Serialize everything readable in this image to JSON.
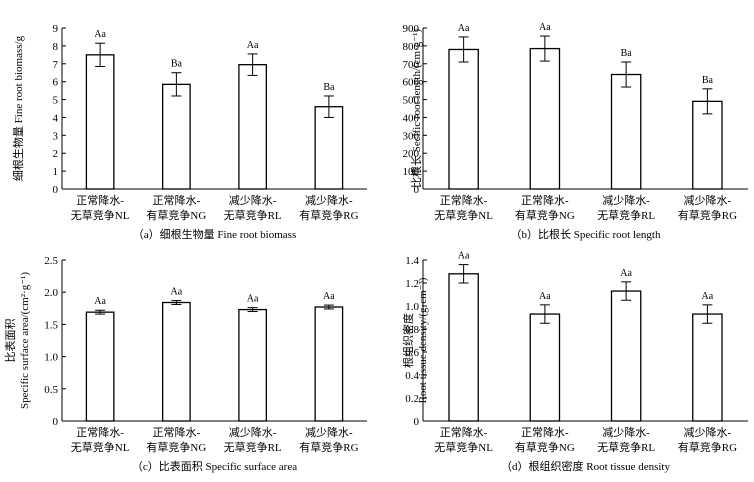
{
  "chart_data": [
    {
      "type": "bar",
      "caption": "（a）细根生物量 Fine root biomass",
      "ylabel": "细根生物量 Fine root biomass/g",
      "categories": [
        [
          "正常降水-",
          "无草竞争NL"
        ],
        [
          "正常降水-",
          "有草竞争NG"
        ],
        [
          "减少降水-",
          "无草竞争RL"
        ],
        [
          "减少降水-",
          "有草竞争RG"
        ]
      ],
      "values": [
        7.5,
        5.85,
        6.95,
        4.6
      ],
      "errors": [
        0.65,
        0.65,
        0.6,
        0.6
      ],
      "labels": [
        "Aa",
        "Ba",
        "Aa",
        "Ba"
      ],
      "ylim": [
        0,
        9
      ],
      "yticks": [
        0,
        1,
        2,
        3,
        4,
        5,
        6,
        7,
        8,
        9
      ],
      "yticklabels": [
        "0",
        "1",
        "2",
        "3",
        "4",
        "5",
        "6",
        "7",
        "8",
        "9"
      ]
    },
    {
      "type": "bar",
      "caption": "（b）比根长 Specific root length",
      "ylabel": "比根长 Secific root length/(cm·g⁻¹)",
      "categories": [
        [
          "正常降水-",
          "无草竞争NL"
        ],
        [
          "正常降水-",
          "有草竞争NG"
        ],
        [
          "减少降水-",
          "无草竞争RL"
        ],
        [
          "减少降水-",
          "有草竞争RG"
        ]
      ],
      "values": [
        780,
        785,
        640,
        490
      ],
      "errors": [
        70,
        70,
        70,
        70
      ],
      "labels": [
        "Aa",
        "Aa",
        "Ba",
        "Ba"
      ],
      "ylim": [
        0,
        900
      ],
      "yticks": [
        0,
        100,
        200,
        300,
        400,
        500,
        600,
        700,
        800,
        900
      ],
      "yticklabels": [
        "0",
        "100",
        "200",
        "300",
        "400",
        "500",
        "600",
        "700",
        "800",
        "900"
      ]
    },
    {
      "type": "bar",
      "caption": "（c）比表面积 Specific surface area",
      "ylabel": [
        "比表面积",
        "Specific surface area/(cm²·g⁻¹)"
      ],
      "categories": [
        [
          "正常降水-",
          "无草竞争NL"
        ],
        [
          "正常降水-",
          "有草竞争NG"
        ],
        [
          "减少降水-",
          "无草竞争RL"
        ],
        [
          "减少降水-",
          "有草竞争RG"
        ]
      ],
      "values": [
        1.69,
        1.84,
        1.73,
        1.77
      ],
      "errors": [
        0.03,
        0.03,
        0.03,
        0.03
      ],
      "labels": [
        "Aa",
        "Aa",
        "Aa",
        "Aa"
      ],
      "ylim": [
        0,
        2.5
      ],
      "yticks": [
        0,
        0.5,
        1.0,
        1.5,
        2.0,
        2.5
      ],
      "yticklabels": [
        "0",
        "0.5",
        "1.0",
        "1.5",
        "2.0",
        "2.5"
      ]
    },
    {
      "type": "bar",
      "caption": "（d）根组织密度 Root tissue density",
      "ylabel": [
        "根组织密度",
        "Root tissue density/(g·cm⁻³)"
      ],
      "categories": [
        [
          "正常降水-",
          "无草竞争NL"
        ],
        [
          "正常降水-",
          "有草竞争NG"
        ],
        [
          "减少降水-",
          "无草竞争RL"
        ],
        [
          "减少降水-",
          "有草竞争RG"
        ]
      ],
      "values": [
        1.28,
        0.93,
        1.13,
        0.93
      ],
      "errors": [
        0.08,
        0.08,
        0.08,
        0.08
      ],
      "labels": [
        "Aa",
        "Aa",
        "Aa",
        "Aa"
      ],
      "ylim": [
        0,
        1.4
      ],
      "yticks": [
        0,
        0.2,
        0.4,
        0.6,
        0.8,
        1.0,
        1.2,
        1.4
      ],
      "yticklabels": [
        "0",
        "0.2",
        "0.4",
        "0.6",
        "0.8",
        "1.0",
        "1.2",
        "1.4"
      ]
    }
  ]
}
